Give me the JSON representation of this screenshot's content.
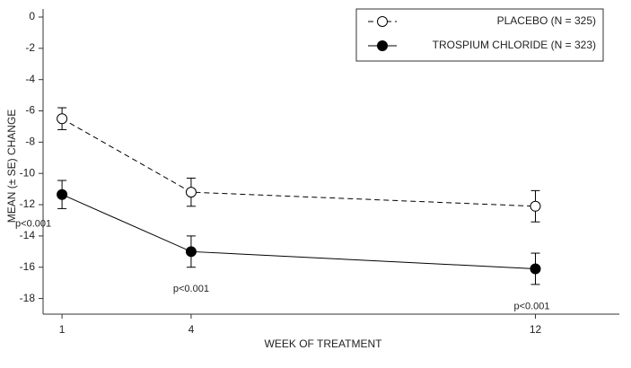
{
  "chart_data": {
    "type": "line",
    "x_label": "WEEK OF TREATMENT",
    "y_label": "MEAN (± SE) CHANGE",
    "x": [
      1,
      4,
      12
    ],
    "xlim": [
      0.56,
      13.7
    ],
    "xticks": [
      1,
      4,
      12
    ],
    "ylim": [
      -19,
      0
    ],
    "yticks": [
      0,
      -2,
      -4,
      -6,
      -8,
      -10,
      -12,
      -14,
      -16,
      -18
    ],
    "legend": "upper right",
    "series": [
      {
        "name": "PLACEBO (N = 325)",
        "color": "#000000",
        "marker_fill": "#ffffff",
        "line_style": "dashed",
        "values": [
          -6.5,
          -11.2,
          -12.1
        ],
        "errors": [
          0.7,
          0.9,
          1.0
        ]
      },
      {
        "name": "TROSPIUM CHLORIDE (N = 323)",
        "color": "#000000",
        "marker_fill": "#000000",
        "line_style": "solid",
        "values": [
          -11.35,
          -15.0,
          -16.1
        ],
        "errors": [
          0.9,
          1.0,
          1.0
        ]
      }
    ],
    "annotations": [
      "p<0.001",
      "p<0.001",
      "p<0.001"
    ]
  }
}
